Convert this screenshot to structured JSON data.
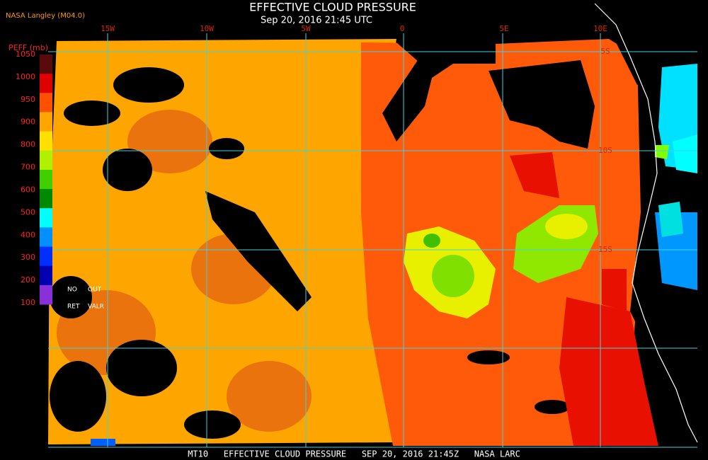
{
  "header": {
    "title": "EFFECTIVE CLOUD PRESSURE",
    "subtitle": "Sep 20, 2016 21:45 UTC",
    "source": "NASA Langley (M04.0)"
  },
  "map": {
    "lon_labels": [
      "15W",
      "10W",
      "5W",
      "0",
      "5E",
      "10E"
    ],
    "lat_labels": [
      "5S",
      "10S",
      "15S"
    ]
  },
  "legend": {
    "title": "PEFF (mb)",
    "labels": [
      1050,
      1000,
      950,
      900,
      800,
      700,
      600,
      500,
      400,
      300,
      200,
      100
    ],
    "colors": [
      "#5a0a0a",
      "#e00000",
      "#ff5000",
      "#ffa500",
      "#ffe000",
      "#b0f000",
      "#40d000",
      "#008a00",
      "#00ffff",
      "#0090ff",
      "#0030ff",
      "#0000b0",
      "#8a30d8"
    ],
    "notes": [
      "NO",
      "OUT",
      "RET",
      "VALR"
    ]
  },
  "footer": "MT10   EFFECTIVE CLOUD PRESSURE   SEP 20, 2016 21:45Z   NASA LARC"
}
